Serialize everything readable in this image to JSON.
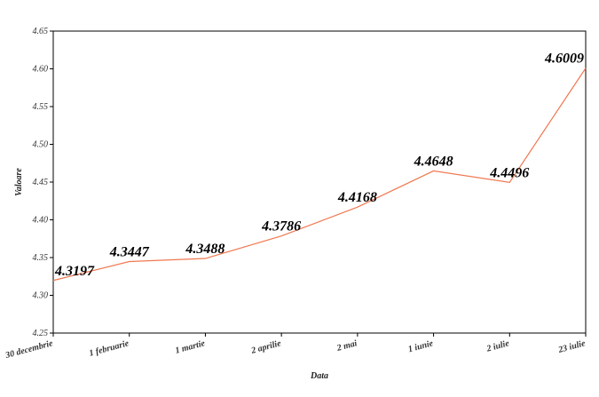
{
  "chart_data": {
    "type": "line",
    "title": "",
    "xlabel": "Data",
    "ylabel": "Valoare",
    "categories": [
      "30 decembrie",
      "1 februarie",
      "1 martie",
      "2 aprilie",
      "2 mai",
      "1 iunie",
      "2 iulie",
      "23 iulie"
    ],
    "series": [
      {
        "values": [
          4.3197,
          4.3447,
          4.3488,
          4.3786,
          4.4168,
          4.4648,
          4.4496,
          4.6009
        ]
      }
    ],
    "data_labels": [
      "4.3197",
      "4.3447",
      "4.3488",
      "4.3786",
      "4.4168",
      "4.4648",
      "4.4496",
      "4.6009"
    ],
    "ylim": [
      4.25,
      4.65
    ],
    "yticks": [
      "4.25",
      "4.30",
      "4.35",
      "4.40",
      "4.45",
      "4.50",
      "4.55",
      "4.60",
      "4.65"
    ],
    "grid": false,
    "line_color": "#f07850"
  }
}
